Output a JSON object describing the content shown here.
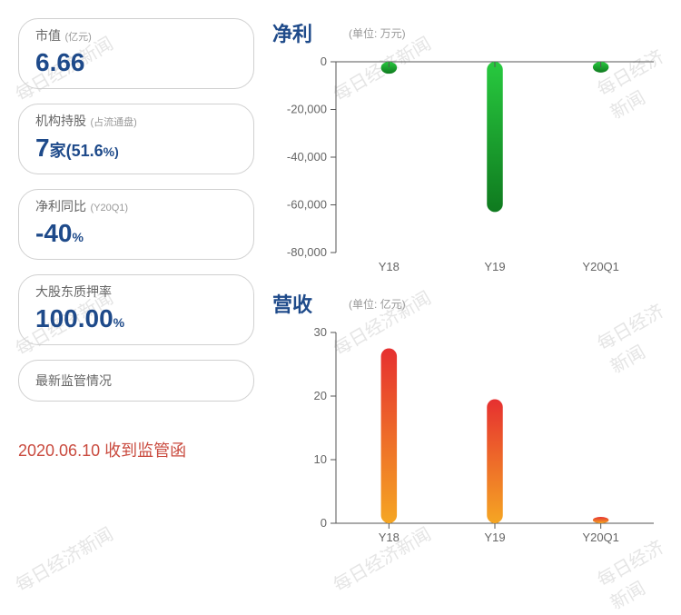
{
  "watermark_text": "每日经济新闻",
  "info_boxes": [
    {
      "label": "市值",
      "label_sub": "(亿元)",
      "value": "6.66"
    },
    {
      "label": "机构持股",
      "label_sub": "(占流通盘)",
      "value": "7",
      "value_sub": "家(",
      "value_pct": "51.6",
      "value_tail": "%)"
    },
    {
      "label": "净利同比",
      "label_sub": "(Y20Q1)",
      "value": "-40",
      "value_tail": "%"
    },
    {
      "label": "大股东质押率",
      "value": "100.00",
      "value_tail": "%"
    }
  ],
  "single_box": {
    "label": "最新监管情况"
  },
  "footer": "2020.06.10 收到监管函",
  "chart_profit": {
    "type": "bar",
    "title": "净利",
    "unit": "(单位: 万元)",
    "categories": [
      "Y18",
      "Y19",
      "Y20Q1"
    ],
    "values": [
      -5000,
      -63000,
      -4500
    ],
    "ylim": [
      -80000,
      0
    ],
    "ytick_step": 20000,
    "yticks": [
      "0",
      "-20,000",
      "-40,000",
      "-60,000",
      "-80,000"
    ],
    "bar_gradient_top": "#28c93f",
    "bar_gradient_bottom": "#0f7a1f",
    "bar_width_ratio": 0.15,
    "axis_color": "#555555",
    "grid_color": "#cccccc",
    "label_color": "#666666",
    "label_fontsize": 13
  },
  "chart_revenue": {
    "type": "bar",
    "title": "营收",
    "unit": "(单位: 亿元)",
    "categories": [
      "Y18",
      "Y19",
      "Y20Q1"
    ],
    "values": [
      27.5,
      19.5,
      1.0
    ],
    "ylim": [
      0,
      30
    ],
    "ytick_step": 10,
    "yticks": [
      "30",
      "20",
      "10",
      "0"
    ],
    "bar_gradient_top": "#e63030",
    "bar_gradient_bottom": "#f5a623",
    "bar_width_ratio": 0.15,
    "axis_color": "#555555",
    "grid_color": "#cccccc",
    "label_color": "#666666",
    "label_fontsize": 13
  }
}
